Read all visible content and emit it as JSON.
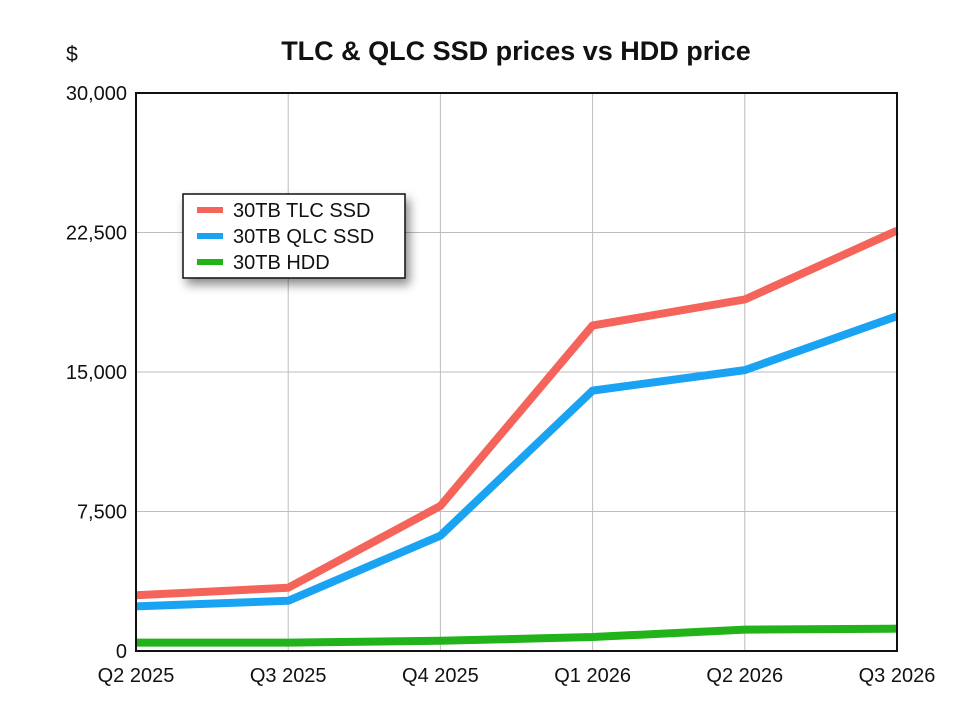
{
  "chart_data": {
    "type": "line",
    "title": "TLC & QLC SSD prices vs HDD price",
    "y_unit": "$",
    "xlabel": "",
    "ylabel": "",
    "categories": [
      "Q2 2025",
      "Q3 2025",
      "Q4 2025",
      "Q1 2026",
      "Q2 2026",
      "Q3 2026"
    ],
    "ylim": [
      0,
      30000
    ],
    "yticks": [
      0,
      7500,
      15000,
      22500,
      30000
    ],
    "ytick_labels": [
      "0",
      "7,500",
      "15,000",
      "22,500",
      "30,000"
    ],
    "grid": true,
    "legend_position": "top-left",
    "series": [
      {
        "name": "30TB TLC SSD",
        "color": "#f4645a",
        "values": [
          3000,
          3400,
          7800,
          17500,
          18900,
          22600
        ]
      },
      {
        "name": "30TB QLC SSD",
        "color": "#1aa3f2",
        "values": [
          2400,
          2700,
          6200,
          14000,
          15100,
          18000
        ]
      },
      {
        "name": "30TB HDD",
        "color": "#22b21a",
        "values": [
          450,
          450,
          550,
          750,
          1150,
          1200
        ]
      }
    ]
  }
}
